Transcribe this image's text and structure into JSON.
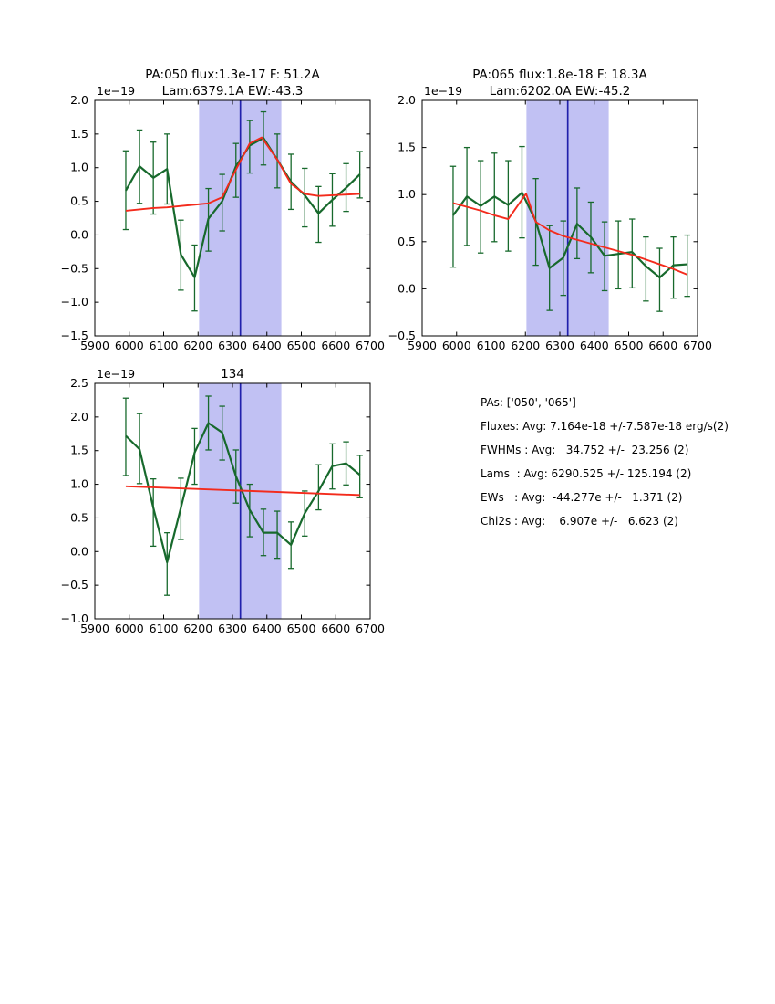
{
  "colors": {
    "background": "#ffffff",
    "axis_black": "#000000",
    "spectrum_green": "#17692c",
    "fit_red": "#f32b1c",
    "band_fill": "#c1c1f3",
    "center_line_blue": "#2121ac"
  },
  "info_panel": {
    "lines": [
      "PAs: ['050', '065']",
      "Fluxes: Avg: 7.164e-18 +/-7.587e-18 erg/s(2)",
      "FWHMs : Avg:   34.752 +/-  23.256 (2)",
      "Lams  : Avg: 6290.525 +/- 125.194 (2)",
      "EWs   : Avg:  -44.277e +/-   1.371 (2)",
      "Chi2s : Avg:    6.907e +/-   6.623 (2)"
    ]
  },
  "chart_data": [
    {
      "id": "pa050",
      "type": "line",
      "title_lines": [
        "PA:050 flux:1.3e-17 F: 51.2A",
        "Lam:6379.1A EW:-43.3"
      ],
      "scale_label": "1e−19",
      "xlim": [
        5900,
        6700
      ],
      "ylim": [
        -1.5,
        2.0
      ],
      "xticks": [
        5900,
        6000,
        6100,
        6200,
        6300,
        6400,
        6500,
        6600,
        6700
      ],
      "yticks": [
        2.0,
        1.5,
        1.0,
        0.5,
        0.0,
        -0.5,
        -1.0,
        -1.5
      ],
      "band": [
        6203,
        6442
      ],
      "vline": 6323,
      "x": [
        5990,
        6030,
        6070,
        6110,
        6150,
        6190,
        6230,
        6270,
        6310,
        6350,
        6390,
        6430,
        6470,
        6510,
        6550,
        6590,
        6630,
        6670
      ],
      "flux": [
        0.66,
        1.02,
        0.85,
        0.98,
        -0.29,
        -0.63,
        0.24,
        0.5,
        1.02,
        1.33,
        1.44,
        1.12,
        0.79,
        0.59,
        0.32,
        0.52,
        0.7,
        0.9
      ],
      "err_lo": [
        0.08,
        0.47,
        0.31,
        0.46,
        -0.82,
        -1.13,
        -0.24,
        0.06,
        0.56,
        0.92,
        1.04,
        0.7,
        0.38,
        0.12,
        -0.11,
        0.13,
        0.35,
        0.55
      ],
      "err_hi": [
        1.25,
        1.56,
        1.38,
        1.5,
        0.22,
        -0.15,
        0.69,
        0.9,
        1.36,
        1.7,
        1.83,
        1.5,
        1.2,
        0.99,
        0.72,
        0.91,
        1.06,
        1.24
      ],
      "fit_x": [
        5990,
        6030,
        6070,
        6110,
        6150,
        6190,
        6230,
        6270,
        6310,
        6350,
        6385,
        6430,
        6470,
        6510,
        6550,
        6590,
        6630,
        6670
      ],
      "fit_y": [
        0.36,
        0.38,
        0.4,
        0.41,
        0.43,
        0.45,
        0.47,
        0.56,
        0.97,
        1.36,
        1.45,
        1.12,
        0.76,
        0.61,
        0.58,
        0.59,
        0.6,
        0.61
      ],
      "axes_rect": [
        104,
        110,
        302,
        258
      ]
    },
    {
      "id": "pa065",
      "type": "line",
      "title_lines": [
        "PA:065 flux:1.8e-18 F: 18.3A",
        "Lam:6202.0A EW:-45.2"
      ],
      "scale_label": "1e−19",
      "xlim": [
        5900,
        6700
      ],
      "ylim": [
        -0.5,
        2.0
      ],
      "xticks": [
        5900,
        6000,
        6100,
        6200,
        6300,
        6400,
        6500,
        6600,
        6700
      ],
      "yticks": [
        2.0,
        1.5,
        1.0,
        0.5,
        0.0,
        -0.5
      ],
      "band": [
        6203,
        6442
      ],
      "vline": 6323,
      "x": [
        5990,
        6030,
        6070,
        6110,
        6150,
        6190,
        6230,
        6270,
        6310,
        6350,
        6390,
        6430,
        6470,
        6510,
        6550,
        6590,
        6630,
        6670
      ],
      "flux": [
        0.78,
        0.98,
        0.88,
        0.98,
        0.89,
        1.02,
        0.72,
        0.22,
        0.33,
        0.69,
        0.55,
        0.35,
        0.37,
        0.39,
        0.24,
        0.12,
        0.25,
        0.26
      ],
      "err_lo": [
        0.23,
        0.46,
        0.38,
        0.5,
        0.4,
        0.54,
        0.25,
        -0.23,
        -0.07,
        0.32,
        0.17,
        -0.02,
        0.0,
        0.01,
        -0.13,
        -0.24,
        -0.1,
        -0.08
      ],
      "err_hi": [
        1.3,
        1.5,
        1.36,
        1.44,
        1.36,
        1.51,
        1.17,
        0.67,
        0.72,
        1.07,
        0.92,
        0.71,
        0.72,
        0.74,
        0.55,
        0.43,
        0.55,
        0.57
      ],
      "fit_x": [
        5990,
        6030,
        6070,
        6110,
        6150,
        6202,
        6230,
        6270,
        6310,
        6350,
        6390,
        6430,
        6470,
        6510,
        6550,
        6590,
        6630,
        6670
      ],
      "fit_y": [
        0.91,
        0.87,
        0.83,
        0.78,
        0.74,
        1.01,
        0.71,
        0.62,
        0.56,
        0.52,
        0.48,
        0.44,
        0.4,
        0.36,
        0.31,
        0.26,
        0.21,
        0.15
      ],
      "axes_rect": [
        463,
        110,
        302,
        258
      ]
    },
    {
      "id": "134",
      "type": "line",
      "title_lines": [
        "134"
      ],
      "scale_label": "1e−19",
      "xlim": [
        5900,
        6700
      ],
      "ylim": [
        -1.0,
        2.5
      ],
      "xticks": [
        5900,
        6000,
        6100,
        6200,
        6300,
        6400,
        6500,
        6600,
        6700
      ],
      "yticks": [
        2.5,
        2.0,
        1.5,
        1.0,
        0.5,
        0.0,
        -0.5,
        -1.0
      ],
      "band": [
        6203,
        6442
      ],
      "vline": 6323,
      "x": [
        5990,
        6030,
        6070,
        6110,
        6150,
        6190,
        6230,
        6270,
        6310,
        6350,
        6390,
        6430,
        6470,
        6510,
        6550,
        6590,
        6630,
        6670
      ],
      "flux": [
        1.72,
        1.52,
        0.65,
        -0.16,
        0.65,
        1.47,
        1.91,
        1.77,
        1.12,
        0.62,
        0.28,
        0.28,
        0.1,
        0.57,
        0.9,
        1.27,
        1.31,
        1.14
      ],
      "err_lo": [
        1.13,
        1.01,
        0.08,
        -0.65,
        0.18,
        1.0,
        1.51,
        1.36,
        0.72,
        0.22,
        -0.06,
        -0.1,
        -0.25,
        0.23,
        0.62,
        0.93,
        0.99,
        0.8
      ],
      "err_hi": [
        2.28,
        2.05,
        1.08,
        0.28,
        1.09,
        1.83,
        2.31,
        2.16,
        1.51,
        1.0,
        0.63,
        0.6,
        0.44,
        0.9,
        1.29,
        1.6,
        1.63,
        1.43
      ],
      "fit_x": [
        5990,
        6670
      ],
      "fit_y": [
        0.97,
        0.84
      ],
      "axes_rect": [
        104,
        420,
        302,
        258
      ]
    }
  ]
}
